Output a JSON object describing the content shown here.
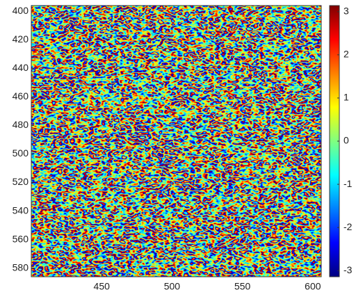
{
  "chart_data": {
    "type": "heatmap",
    "colormap": "jet",
    "y_direction": "reverse",
    "xlim": [
      400,
      606
    ],
    "xticks": [
      450,
      500,
      550,
      600
    ],
    "ylim": [
      396,
      586
    ],
    "yticks": [
      400,
      420,
      440,
      460,
      480,
      500,
      520,
      540,
      560,
      580
    ],
    "colorbar": {
      "clim": [
        -3.1416,
        3.1416
      ],
      "ticks": [
        -3,
        -2,
        -1,
        0,
        1,
        2,
        3
      ]
    }
  }
}
